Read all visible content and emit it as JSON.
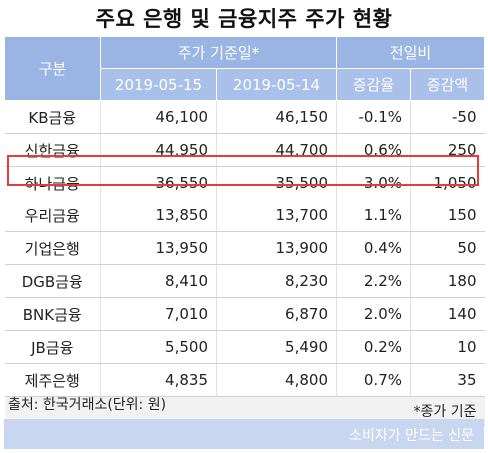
{
  "title": "주요 은행 및 금융지주 주가 현황",
  "table": {
    "header_group": "구분",
    "header_price": "주가 기준일*",
    "header_change": "전일비",
    "col_date1": "2019-05-15",
    "col_date2": "2019-05-14",
    "col_rate": "증감율",
    "col_amount": "증감액",
    "rows": [
      {
        "name": "KB금융",
        "p1": "46,100",
        "p2": "46,150",
        "rate": "-0.1%",
        "amt": "-50"
      },
      {
        "name": "신한금융",
        "p1": "44,950",
        "p2": "44,700",
        "rate": "0.6%",
        "amt": "250"
      },
      {
        "name": "하나금융",
        "p1": "36,550",
        "p2": "35,500",
        "rate": "3.0%",
        "amt": "1,050"
      },
      {
        "name": "우리금융",
        "p1": "13,850",
        "p2": "13,700",
        "rate": "1.1%",
        "amt": "150"
      },
      {
        "name": "기업은행",
        "p1": "13,950",
        "p2": "13,900",
        "rate": "0.4%",
        "amt": "50"
      },
      {
        "name": "DGB금융",
        "p1": "8,410",
        "p2": "8,230",
        "rate": "2.2%",
        "amt": "180"
      },
      {
        "name": "BNK금융",
        "p1": "7,010",
        "p2": "6,870",
        "rate": "2.0%",
        "amt": "140"
      },
      {
        "name": "JB금융",
        "p1": "5,500",
        "p2": "5,490",
        "rate": "0.2%",
        "amt": "10"
      },
      {
        "name": "제주은행",
        "p1": "4,835",
        "p2": "4,800",
        "rate": "0.7%",
        "amt": "35"
      }
    ],
    "footnote": "*종가 기준"
  },
  "source": "출처: 한국거래소(단위: 원)",
  "brand": "소비자가 만드는 신문",
  "colors": {
    "header_bg": "#9ab5e3",
    "highlight_border": "#e23c3c",
    "footer_bg": "#c9d6ef"
  }
}
